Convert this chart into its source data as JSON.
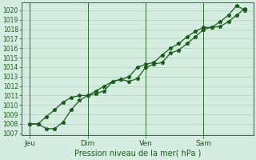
{
  "title": "",
  "xlabel": "Pression niveau de la mer( hPa )",
  "ylabel": "",
  "bg_color": "#d4ede0",
  "line_color": "#1a5c1a",
  "grid_major_color": "#a8c8b0",
  "grid_minor_color": "#c0dcc8",
  "yticks": [
    1007,
    1008,
    1009,
    1010,
    1011,
    1012,
    1013,
    1014,
    1015,
    1016,
    1017,
    1018,
    1019,
    1020
  ],
  "ylim": [
    1006.8,
    1020.8
  ],
  "xtick_labels": [
    "Jeu",
    "Dim",
    "Ven",
    "Sam"
  ],
  "xtick_positions": [
    0.5,
    4.0,
    7.5,
    11.0
  ],
  "xlim": [
    0,
    14.0
  ],
  "vlines": [
    0.5,
    4.0,
    7.5,
    11.0
  ],
  "series1_x": [
    0.5,
    1.0,
    1.5,
    2.0,
    2.5,
    3.0,
    3.5,
    4.0,
    4.5,
    5.0,
    5.5,
    6.0,
    6.5,
    7.0,
    7.5,
    8.0,
    8.5,
    9.0,
    9.5,
    10.0,
    10.5,
    11.0,
    11.5,
    12.0,
    12.5,
    13.0,
    13.5
  ],
  "series1_y": [
    1008.0,
    1008.0,
    1007.5,
    1007.5,
    1008.2,
    1009.5,
    1010.5,
    1011.0,
    1011.2,
    1011.5,
    1012.5,
    1012.7,
    1012.5,
    1012.8,
    1014.0,
    1014.3,
    1014.5,
    1015.5,
    1015.8,
    1016.5,
    1017.2,
    1018.0,
    1018.2,
    1018.3,
    1018.8,
    1019.5,
    1020.2
  ],
  "series2_x": [
    0.5,
    1.0,
    1.5,
    2.0,
    2.5,
    3.0,
    3.5,
    4.0,
    4.5,
    5.0,
    5.5,
    6.0,
    6.5,
    7.0,
    7.5,
    8.0,
    8.5,
    9.0,
    9.5,
    10.0,
    10.5,
    11.0,
    11.5,
    12.0,
    12.5,
    13.0,
    13.5
  ],
  "series2_y": [
    1008.0,
    1008.0,
    1008.8,
    1009.5,
    1010.3,
    1010.8,
    1011.0,
    1011.0,
    1011.5,
    1012.0,
    1012.5,
    1012.7,
    1013.0,
    1014.0,
    1014.3,
    1014.5,
    1015.3,
    1016.0,
    1016.5,
    1017.2,
    1017.8,
    1018.2,
    1018.2,
    1018.8,
    1019.5,
    1020.5,
    1020.0
  ],
  "marker": "*",
  "markersize": 3.5,
  "linewidth": 0.9
}
